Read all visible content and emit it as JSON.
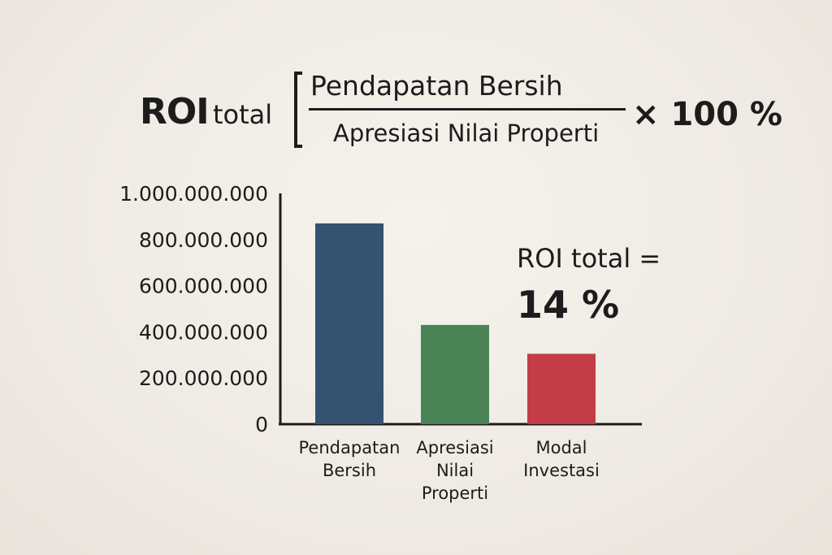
{
  "formula": {
    "roi_label": "ROI",
    "roi_sub": "total",
    "numerator": "Pendapatan Bersih",
    "denominator": "Apresiasi Nilai Properti",
    "multiplier": "× 100 %"
  },
  "result": {
    "label": "ROI total =",
    "value": "14 %"
  },
  "colors": {
    "pendapatan": "#355271",
    "apresiasi": "#4a8456",
    "modal": "#c33d48",
    "axis": "#1c1c1c"
  },
  "chart_data": {
    "type": "bar",
    "categories": [
      [
        "Pendapatan",
        "Bersih"
      ],
      [
        "Apresiasi",
        "Nilai",
        "Properti"
      ],
      [
        "Modal",
        "Investasi"
      ]
    ],
    "values": [
      870000000,
      430000000,
      305000000
    ],
    "ylim": [
      0,
      1000000000
    ],
    "y_ticks": [
      {
        "value": 0,
        "label": "0"
      },
      {
        "value": 200000000,
        "label": "200.000.000"
      },
      {
        "value": 400000000,
        "label": "400.000.000"
      },
      {
        "value": 600000000,
        "label": "600.000.000"
      },
      {
        "value": 800000000,
        "label": "800.000.000"
      },
      {
        "value": 1000000000,
        "label": "1.000.000.000"
      }
    ],
    "bar_colors": [
      "#355271",
      "#4a8456",
      "#c33d48"
    ],
    "grid": false,
    "legend": "none"
  }
}
